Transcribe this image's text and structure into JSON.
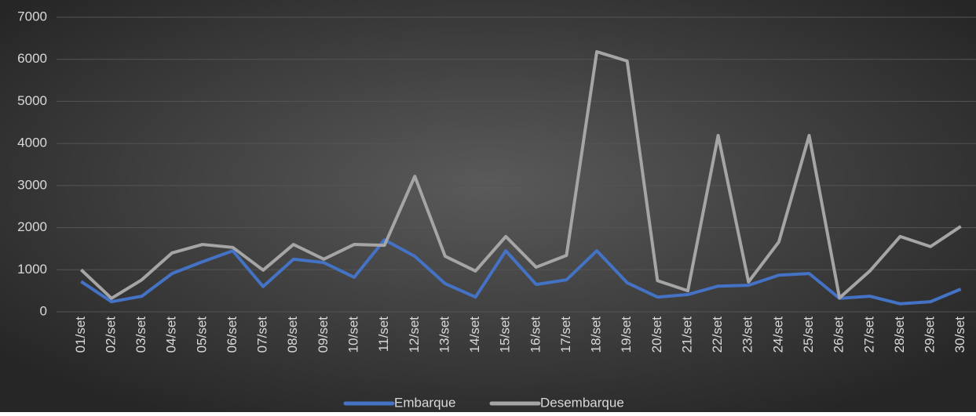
{
  "chart_data": {
    "type": "line",
    "categories": [
      "01/set",
      "02/set",
      "03/set",
      "04/set",
      "05/set",
      "06/set",
      "07/set",
      "08/set",
      "09/set",
      "10/set",
      "11/set",
      "12/set",
      "13/set",
      "14/set",
      "15/set",
      "16/set",
      "17/set",
      "18/set",
      "19/set",
      "20/set",
      "21/set",
      "22/set",
      "23/set",
      "24/set",
      "25/set",
      "26/set",
      "27/set",
      "28/set",
      "29/set",
      "30/set"
    ],
    "series": [
      {
        "name": "Embarque",
        "color": "#4472c4",
        "values": [
          720,
          240,
          370,
          910,
          1190,
          1450,
          600,
          1250,
          1170,
          820,
          1710,
          1320,
          670,
          350,
          1450,
          650,
          760,
          1450,
          690,
          350,
          410,
          610,
          630,
          870,
          910,
          320,
          370,
          190,
          240,
          540
        ]
      },
      {
        "name": "Desembarque",
        "color": "#a5a5a5",
        "values": [
          1000,
          320,
          760,
          1400,
          1600,
          1530,
          990,
          1600,
          1250,
          1600,
          1580,
          3220,
          1320,
          970,
          1790,
          1060,
          1340,
          6180,
          5960,
          740,
          500,
          4190,
          710,
          1660,
          4190,
          330,
          970,
          1790,
          1550,
          2030
        ]
      }
    ],
    "ylim": [
      0,
      7000
    ],
    "yticks": [
      0,
      1000,
      2000,
      3000,
      4000,
      5000,
      6000,
      7000
    ],
    "grid": true,
    "legend": "bottom"
  }
}
